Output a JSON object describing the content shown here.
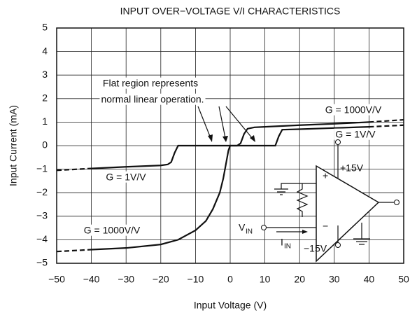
{
  "chart_data": {
    "type": "line",
    "title": "INPUT OVER−VOLTAGE V/I CHARACTERISTICS",
    "xlabel": "Input Voltage (V)",
    "ylabel": "Input Current (mA)",
    "xlim": [
      -50,
      50
    ],
    "ylim": [
      -5,
      5
    ],
    "xticks": [
      {
        "value": -50,
        "label": "−50"
      },
      {
        "value": -40,
        "label": "−40"
      },
      {
        "value": -30,
        "label": "−30"
      },
      {
        "value": -20,
        "label": "−20"
      },
      {
        "value": -10,
        "label": "−10"
      },
      0,
      10,
      20,
      30,
      40,
      50
    ],
    "yticks": [
      {
        "value": -5,
        "label": "−5"
      },
      {
        "value": -4,
        "label": "−4"
      },
      {
        "value": -3,
        "label": "−3"
      },
      {
        "value": -2,
        "label": "−2"
      },
      {
        "value": -1,
        "label": "−1"
      },
      0,
      1,
      2,
      3,
      4,
      5
    ],
    "grid": true,
    "dashed_outside": [
      -40,
      40
    ],
    "series": [
      {
        "color": "#111111",
        "x": [
          -50,
          -40,
          -30,
          -20,
          -15,
          -10,
          -7,
          -5,
          -3,
          -2,
          -1,
          -0.5,
          0,
          2,
          3,
          4,
          5,
          7,
          10,
          20,
          30,
          40,
          50
        ],
        "values": [
          -4.5,
          -4.42,
          -4.35,
          -4.2,
          -4.0,
          -3.6,
          -3.2,
          -2.7,
          -2.0,
          -1.4,
          -0.6,
          -0.2,
          0,
          0,
          0.1,
          0.5,
          0.72,
          0.78,
          0.8,
          0.87,
          0.93,
          1.0,
          1.1
        ]
      },
      {
        "color": "#111111",
        "x": [
          -50,
          -40,
          -30,
          -20,
          -18,
          -17,
          -16,
          -15,
          13,
          14,
          15,
          20,
          30,
          40,
          50
        ],
        "values": [
          -1.05,
          -0.97,
          -0.9,
          -0.84,
          -0.8,
          -0.7,
          -0.3,
          0,
          0,
          0.4,
          0.68,
          0.7,
          0.75,
          0.8,
          0.87
        ]
      }
    ],
    "annotations": [
      "Flat region represents",
      "normal linear operation.",
      "G = 1000V/V",
      "G = 1V/V",
      "G = 1V/V",
      "G = 1000V/V"
    ],
    "inset": {
      "plus": "+",
      "minus": "−",
      "pos_supply": "+15V",
      "neg_supply": "−15V",
      "vin": "V",
      "vin_sub": "IN",
      "iin": "I",
      "iin_sub": "IN"
    }
  }
}
